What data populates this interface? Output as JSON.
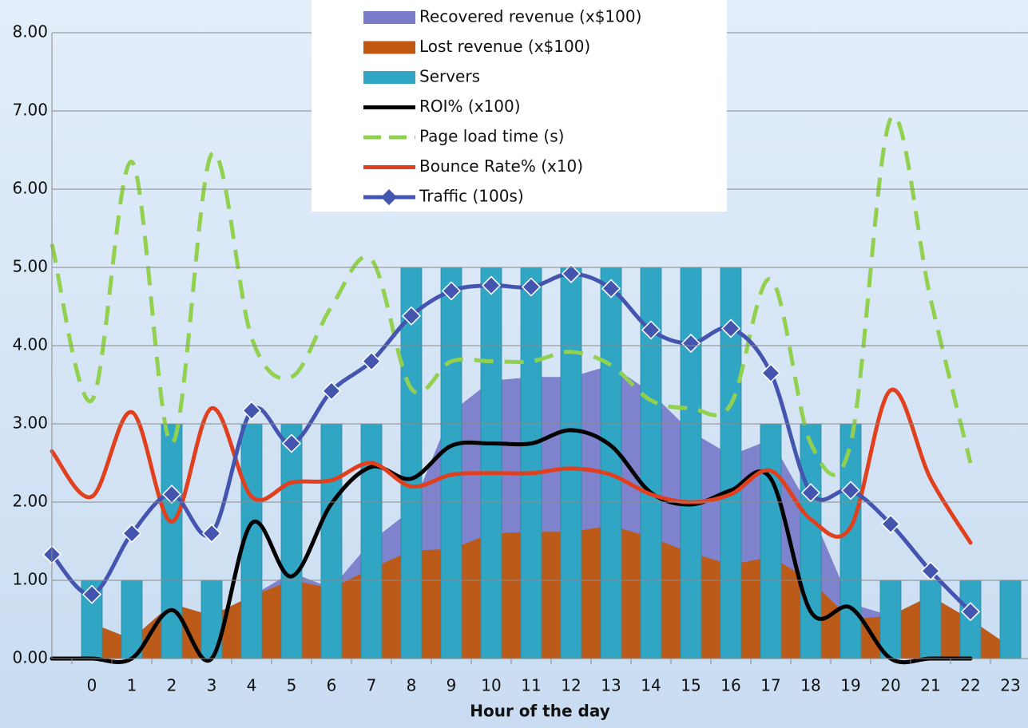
{
  "chart_data": {
    "type": "combo",
    "x_label": "Hour of the day",
    "categories": [
      null,
      "0",
      "1",
      "2",
      "3",
      "4",
      "5",
      "6",
      "7",
      "8",
      "9",
      "10",
      "11",
      "12",
      "13",
      "14",
      "15",
      "16",
      "17",
      "18",
      "19",
      "20",
      "21",
      "22",
      "23"
    ],
    "ylim": [
      0,
      8
    ],
    "yticks": [
      {
        "value": 0,
        "label": "0.00"
      },
      {
        "value": 1,
        "label": "1.00"
      },
      {
        "value": 2,
        "label": "2.00"
      },
      {
        "value": 3,
        "label": "3.00"
      },
      {
        "value": 4,
        "label": "4.00"
      },
      {
        "value": 5,
        "label": "5.00"
      },
      {
        "value": 6,
        "label": "6.00"
      },
      {
        "value": 7,
        "label": "7.00"
      },
      {
        "value": 8,
        "label": "8.00"
      }
    ],
    "grid": true,
    "legend": "top",
    "series": [
      {
        "name": "Recovered revenue (x$100)",
        "kind": "area",
        "color": "#7a7cc9",
        "values": [
          null,
          0.45,
          0.25,
          0.7,
          0.55,
          0.8,
          1.1,
          0.9,
          1.5,
          1.9,
          3.15,
          3.55,
          3.6,
          3.6,
          3.75,
          3.4,
          2.9,
          2.6,
          2.8,
          1.9,
          0.7,
          0.55,
          0.8,
          0.5,
          0.15
        ]
      },
      {
        "name": "Lost revenue (x$100)",
        "kind": "area",
        "color": "#c0590f",
        "values": [
          null,
          0.45,
          0.25,
          0.7,
          0.55,
          0.8,
          1.0,
          0.9,
          1.15,
          1.38,
          1.4,
          1.6,
          1.62,
          1.62,
          1.7,
          1.55,
          1.35,
          1.2,
          1.3,
          1.0,
          0.5,
          0.55,
          0.8,
          0.5,
          0.15
        ]
      },
      {
        "name": "Servers",
        "kind": "bar",
        "color": "#31a6c4",
        "values": [
          null,
          1,
          1,
          3,
          1,
          3,
          3,
          3,
          3,
          5,
          5,
          5,
          5,
          5,
          5,
          5,
          5,
          5,
          3,
          3,
          3,
          1,
          1,
          1,
          1
        ]
      },
      {
        "name": "ROI% (x100)",
        "kind": "line",
        "color": "#000000",
        "values": [
          0,
          0,
          0,
          0.62,
          0,
          1.73,
          1.05,
          1.98,
          2.45,
          2.3,
          2.72,
          2.75,
          2.75,
          2.92,
          2.72,
          2.12,
          1.97,
          2.15,
          2.3,
          0.6,
          0.65,
          0,
          0,
          0,
          null
        ]
      },
      {
        "name": "Page load time (s)",
        "kind": "line",
        "dashed": true,
        "color": "#92d050",
        "values": [
          5.3,
          3.3,
          6.35,
          2.75,
          6.45,
          4.1,
          3.6,
          4.5,
          5.1,
          3.45,
          3.8,
          3.8,
          3.8,
          3.92,
          3.75,
          3.3,
          3.2,
          3.25,
          4.85,
          2.75,
          2.75,
          6.9,
          4.6,
          2.5,
          null
        ]
      },
      {
        "name": "Bounce Rate% (x10)",
        "kind": "line",
        "color": "#e0401e",
        "values": [
          2.65,
          2.07,
          3.15,
          1.75,
          3.2,
          2.07,
          2.25,
          2.28,
          2.5,
          2.2,
          2.35,
          2.37,
          2.37,
          2.43,
          2.35,
          2.1,
          2.0,
          2.1,
          2.4,
          1.78,
          1.68,
          3.43,
          2.3,
          1.48,
          null
        ]
      },
      {
        "name": "Traffic (100s)",
        "kind": "line",
        "marker": "diamond",
        "color": "#4455b0",
        "values": [
          1.33,
          0.82,
          1.6,
          2.1,
          1.6,
          3.17,
          2.75,
          3.42,
          3.8,
          4.38,
          4.7,
          4.77,
          4.75,
          4.92,
          4.73,
          4.2,
          4.03,
          4.22,
          3.65,
          2.12,
          2.15,
          1.72,
          1.12,
          0.6,
          null
        ]
      }
    ]
  }
}
